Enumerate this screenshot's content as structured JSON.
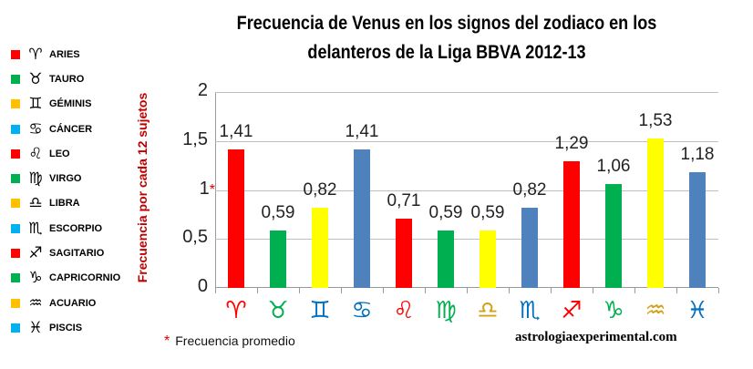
{
  "chart_data": {
    "type": "bar",
    "title": "Frecuencia de Venus en los signos del zodiaco en los delanteros de la Liga BBVA 2012-13",
    "title_lines": [
      "Frecuencia de Venus en los signos del zodiaco en los",
      "delanteros de la Liga BBVA 2012-13"
    ],
    "xlabel": "",
    "ylabel": "Frecuencia por cada 12 sujetos",
    "ylim": [
      0,
      2
    ],
    "yticks": [
      "0",
      "0,5",
      "1",
      "1,5",
      "2"
    ],
    "ytick_mark": "*",
    "grid": true,
    "legend_position": "left",
    "categories": [
      "ARIES",
      "TAURO",
      "GÉMINIS",
      "CÁNCER",
      "LEO",
      "VIRGO",
      "LIBRA",
      "ESCORPIO",
      "SAGITARIO",
      "CAPRICORNIO",
      "ACUARIO",
      "PISCIS"
    ],
    "values": [
      1.41,
      0.59,
      0.82,
      1.41,
      0.71,
      0.59,
      0.59,
      0.82,
      1.29,
      1.06,
      1.53,
      1.18
    ],
    "value_labels": [
      "1,41",
      "0,59",
      "0,82",
      "1,41",
      "0,71",
      "0,59",
      "0,59",
      "0,82",
      "1,29",
      "1,06",
      "1,53",
      "1,18"
    ],
    "bar_colors": [
      "#ff0000",
      "#00b050",
      "#ffff00",
      "#4f81bd",
      "#ff0000",
      "#00b050",
      "#ffff00",
      "#4f81bd",
      "#ff0000",
      "#00b050",
      "#ffff00",
      "#4f81bd"
    ],
    "annotations": [
      "* Frecuencia promedio",
      "astrologiaexperimental.com"
    ]
  },
  "legend": {
    "items": [
      {
        "label": "ARIES",
        "glyph": "♈",
        "color": "#ff0000"
      },
      {
        "label": "TAURO",
        "glyph": "♉",
        "color": "#00b050"
      },
      {
        "label": "GÉMINIS",
        "glyph": "♊",
        "color": "#ffc000"
      },
      {
        "label": "CÁNCER",
        "glyph": "♋",
        "color": "#00b0f0"
      },
      {
        "label": "LEO",
        "glyph": "♌",
        "color": "#ff0000"
      },
      {
        "label": "VIRGO",
        "glyph": "♍",
        "color": "#00b050"
      },
      {
        "label": "LIBRA",
        "glyph": "♎",
        "color": "#ffc000"
      },
      {
        "label": "ESCORPIO",
        "glyph": "♏",
        "color": "#00b0f0"
      },
      {
        "label": "SAGITARIO",
        "glyph": "♐",
        "color": "#ff0000"
      },
      {
        "label": "CAPRICORNIO",
        "glyph": "♑",
        "color": "#00b050"
      },
      {
        "label": "ACUARIO",
        "glyph": "♒",
        "color": "#ffc000"
      },
      {
        "label": "PISCIS",
        "glyph": "♓",
        "color": "#00b0f0"
      }
    ]
  },
  "xaxis_signs": [
    {
      "glyph": "♈",
      "color": "#ff0000"
    },
    {
      "glyph": "♉",
      "color": "#00b050"
    },
    {
      "glyph": "♊",
      "color": "#0070c0"
    },
    {
      "glyph": "♋",
      "color": "#0070c0"
    },
    {
      "glyph": "♌",
      "color": "#ff0000"
    },
    {
      "glyph": "♍",
      "color": "#00b050"
    },
    {
      "glyph": "♎",
      "color": "#d4a017"
    },
    {
      "glyph": "♏",
      "color": "#0070c0"
    },
    {
      "glyph": "♐",
      "color": "#ff0000"
    },
    {
      "glyph": "♑",
      "color": "#00b050"
    },
    {
      "glyph": "♒",
      "color": "#d4a017"
    },
    {
      "glyph": "♓",
      "color": "#0070c0"
    }
  ],
  "footnote": {
    "star": "*",
    "text": "Frecuencia promedio"
  },
  "site": "astrologiaexperimental.com"
}
